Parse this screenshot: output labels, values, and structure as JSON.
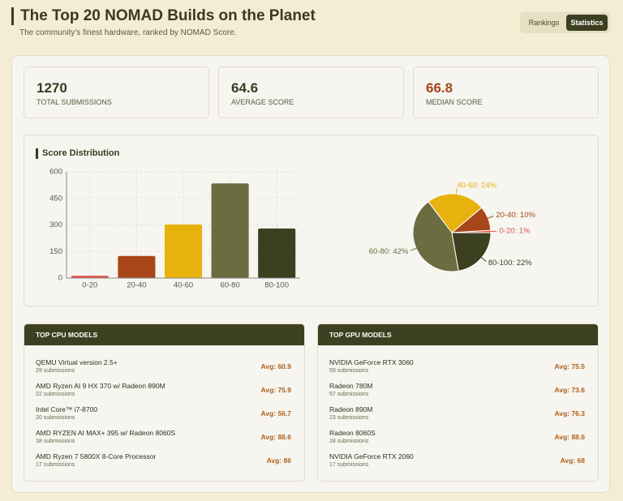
{
  "header": {
    "title": "The Top 20 NOMAD Builds on the Planet",
    "subtitle": "The community's finest hardware, ranked by NOMAD Score.",
    "tabs": [
      "Rankings",
      "Statistics"
    ]
  },
  "stats": [
    {
      "value": 1270,
      "label": "TOTAL SUBMISSIONS"
    },
    {
      "value": 64.6,
      "label": "AVERAGE SCORE"
    },
    {
      "value": 66.8,
      "label": "MEDIAN SCORE"
    }
  ],
  "section_title": "Score Distribution",
  "chart_data": [
    {
      "type": "bar",
      "categories": [
        "0-20",
        "20-40",
        "40-60",
        "60-80",
        "80-100"
      ],
      "values": [
        13,
        125,
        303,
        535,
        280
      ],
      "colors": [
        "#e0574c",
        "#a8461a",
        "#e8b20e",
        "#6b6d40",
        "#3d4020"
      ],
      "ylim": [
        0,
        600
      ],
      "yticks": [
        0,
        150,
        300,
        450,
        600
      ],
      "grid": true
    },
    {
      "type": "pie",
      "values": [
        1,
        10,
        24,
        42,
        22
      ],
      "value_labels": [
        "0-20: 1%",
        "20-40: 10%",
        "40-60: 24%",
        "60-80: 42%",
        "80-100: 22%"
      ],
      "colors": [
        "#e0574c",
        "#a8461a",
        "#e8b20e",
        "#6b6d40",
        "#3d4020"
      ]
    }
  ],
  "cpu_models": {
    "title": "TOP CPU MODELS",
    "rows": [
      {
        "name": "QEMU Virtual version 2.5+",
        "submissions": "29 submissions",
        "average": "Avg: 60.9"
      },
      {
        "name": "AMD Ryzen AI 9 HX 370 w/ Radeon 890M",
        "submissions": "22 submissions",
        "average": "Avg: 75.9"
      },
      {
        "name": "Intel Core™ i7-8700",
        "submissions": "20 submissions",
        "average": "Avg: 56.7"
      },
      {
        "name": "AMD RYZEN AI MAX+ 395 w/ Radeon 8060S",
        "submissions": "18 submissions",
        "average": "Avg: 88.6"
      },
      {
        "name": "AMD Ryzen 7 5800X 8-Core Processor",
        "submissions": "17 submissions",
        "average": "Avg: 86"
      }
    ]
  },
  "gpu_models": {
    "title": "TOP GPU MODELS",
    "rows": [
      {
        "name": "NVIDIA GeForce RTX 3060",
        "submissions": "59 submissions",
        "average": "Avg: 75.5"
      },
      {
        "name": "Radeon 780M",
        "submissions": "57 submissions",
        "average": "Avg: 73.6"
      },
      {
        "name": "Radeon 890M",
        "submissions": "23 submissions",
        "average": "Avg: 76.3"
      },
      {
        "name": "Radeon 8060S",
        "submissions": "18 submissions",
        "average": "Avg: 88.6"
      },
      {
        "name": "NVIDIA GeForce RTX 2060",
        "submissions": "17 submissions",
        "average": "Avg: 68"
      }
    ]
  }
}
